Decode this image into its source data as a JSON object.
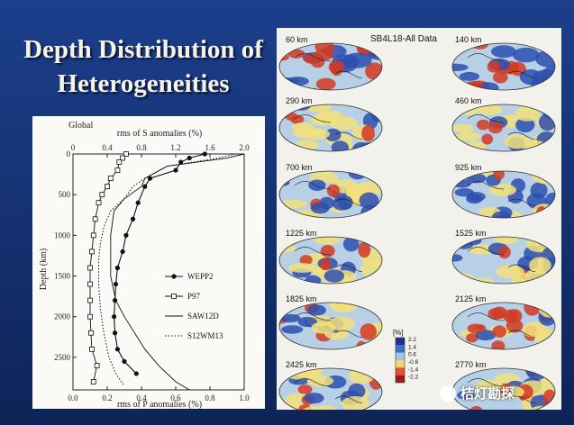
{
  "slide": {
    "title_line1": "Depth Distribution of",
    "title_line2": "Heterogeneities"
  },
  "chart_data": {
    "type": "line",
    "title": "Global",
    "x_top_label": "rms of S anomalies (%)",
    "x_top_ticks": [
      "0",
      "0.4",
      "0.8",
      "1.2",
      "1.6",
      "2.0"
    ],
    "x_top_range": [
      0,
      2.0
    ],
    "x_bottom_label": "rms of P anomalies (%)",
    "x_bottom_ticks": [
      "0.0",
      "0.2",
      "0.4",
      "0.6",
      "0.8",
      "1.0"
    ],
    "x_bottom_range": [
      0,
      1.0
    ],
    "ylabel": "Depth (km)",
    "y_ticks": [
      "0",
      "500",
      "1000",
      "1500",
      "2000",
      "2500"
    ],
    "ylim": [
      0,
      2900
    ],
    "legend_position": "right-middle",
    "series": [
      {
        "name": "WEPP2",
        "style": "solid-dots",
        "points": [
          [
            0.77,
            0
          ],
          [
            0.68,
            50
          ],
          [
            0.63,
            100
          ],
          [
            0.6,
            200
          ],
          [
            0.45,
            300
          ],
          [
            0.42,
            400
          ],
          [
            0.38,
            600
          ],
          [
            0.35,
            800
          ],
          [
            0.31,
            1000
          ],
          [
            0.29,
            1200
          ],
          [
            0.26,
            1400
          ],
          [
            0.25,
            1600
          ],
          [
            0.245,
            1800
          ],
          [
            0.24,
            2000
          ],
          [
            0.245,
            2200
          ],
          [
            0.26,
            2400
          ],
          [
            0.3,
            2550
          ],
          [
            0.37,
            2700
          ]
        ]
      },
      {
        "name": "P97",
        "style": "open-squares",
        "points": [
          [
            0.31,
            0
          ],
          [
            0.29,
            50
          ],
          [
            0.27,
            100
          ],
          [
            0.26,
            200
          ],
          [
            0.22,
            300
          ],
          [
            0.2,
            400
          ],
          [
            0.17,
            500
          ],
          [
            0.15,
            600
          ],
          [
            0.13,
            800
          ],
          [
            0.12,
            1000
          ],
          [
            0.11,
            1200
          ],
          [
            0.1,
            1400
          ],
          [
            0.1,
            1600
          ],
          [
            0.1,
            1800
          ],
          [
            0.1,
            2000
          ],
          [
            0.105,
            2200
          ],
          [
            0.11,
            2400
          ],
          [
            0.14,
            2600
          ],
          [
            0.12,
            2800
          ]
        ]
      },
      {
        "name": "SAW12D",
        "style": "solid",
        "points": [
          [
            1.0,
            0
          ],
          [
            0.9,
            50
          ],
          [
            0.55,
            150
          ],
          [
            0.42,
            300
          ],
          [
            0.4,
            400
          ],
          [
            0.3,
            550
          ],
          [
            0.24,
            700
          ],
          [
            0.22,
            1000
          ],
          [
            0.22,
            1500
          ],
          [
            0.25,
            1800
          ],
          [
            0.3,
            2000
          ],
          [
            0.36,
            2200
          ],
          [
            0.42,
            2400
          ],
          [
            0.5,
            2600
          ],
          [
            0.6,
            2800
          ],
          [
            0.68,
            2900
          ]
        ]
      },
      {
        "name": "S12WM13",
        "style": "dotted",
        "points": [
          [
            0.95,
            0
          ],
          [
            0.85,
            50
          ],
          [
            0.55,
            150
          ],
          [
            0.42,
            300
          ],
          [
            0.35,
            400
          ],
          [
            0.3,
            550
          ],
          [
            0.22,
            700
          ],
          [
            0.18,
            900
          ],
          [
            0.16,
            1100
          ],
          [
            0.15,
            1300
          ],
          [
            0.15,
            1600
          ],
          [
            0.16,
            1900
          ],
          [
            0.18,
            2200
          ],
          [
            0.21,
            2500
          ],
          [
            0.25,
            2700
          ],
          [
            0.3,
            2850
          ]
        ]
      }
    ]
  },
  "maps": {
    "header": "SB4L18-All Data",
    "scale_unit": "[%]",
    "scale_ticks": [
      "2.2",
      "1.4",
      "0.6",
      "-0.6",
      "-1.4",
      "-2.2"
    ],
    "depths": [
      "60  km",
      "140  km",
      "290  km",
      "460  km",
      "700  km",
      "925  km",
      "1225  km",
      "1525  km",
      "1825  km",
      "2125  km",
      "2425  km",
      "2770  km"
    ],
    "colors": {
      "fast": "#2d4fb0",
      "slow": "#d23a22",
      "neutral": "#f2e07a",
      "ocean": "#b7d0e6"
    }
  },
  "watermark": {
    "text": "桔灯勘探"
  }
}
